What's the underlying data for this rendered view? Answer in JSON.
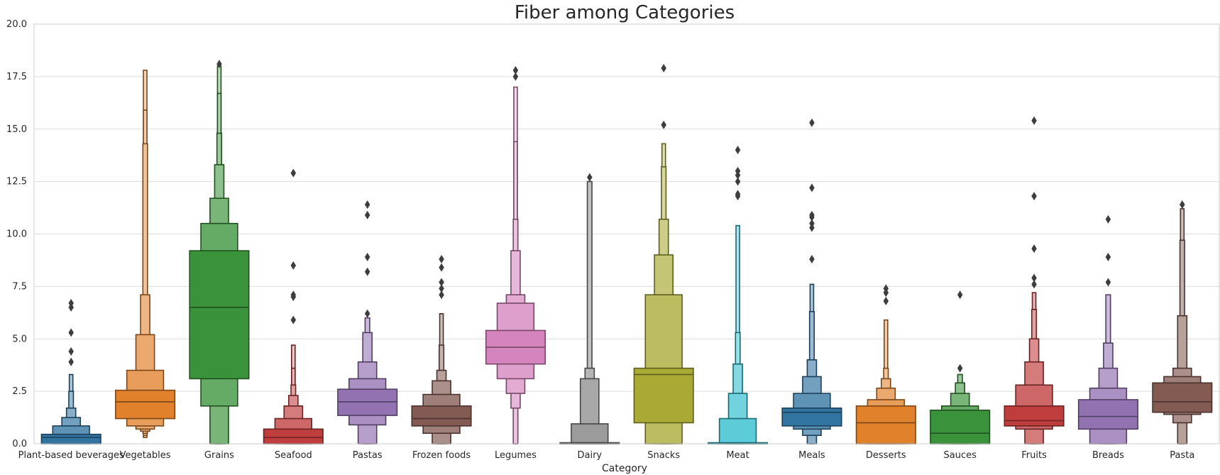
{
  "chart_data": {
    "type": "boxen",
    "title": "Fiber among Categories",
    "xlabel": "Category",
    "ylabel": "",
    "ylim": [
      0,
      20
    ],
    "yticks": [
      "0.0",
      "2.5",
      "5.0",
      "7.5",
      "10.0",
      "12.5",
      "15.0",
      "17.5",
      "20.0"
    ],
    "grid": "horizontal",
    "categories": [
      {
        "name": "Plant-based beverages",
        "color": "#3274a1",
        "median": 0.3,
        "levels": [
          [
            0,
            0.45
          ],
          [
            0,
            0.85
          ],
          [
            0.1,
            1.25
          ],
          [
            0.15,
            1.7
          ],
          [
            0.2,
            2.5
          ],
          [
            0.2,
            3.3
          ]
        ],
        "outliers": [
          3.9,
          4.4,
          5.3,
          6.5,
          6.7
        ]
      },
      {
        "name": "Vegetables",
        "color": "#e1812c",
        "median": 2.0,
        "levels": [
          [
            1.2,
            2.55
          ],
          [
            0.85,
            3.5
          ],
          [
            0.7,
            5.2
          ],
          [
            0.6,
            7.1
          ],
          [
            0.5,
            14.3
          ],
          [
            0.4,
            15.9
          ],
          [
            0.3,
            17.8
          ]
        ],
        "outliers": []
      },
      {
        "name": "Grains",
        "color": "#3a923a",
        "median": 6.5,
        "levels": [
          [
            3.1,
            9.2
          ],
          [
            1.8,
            10.5
          ],
          [
            0,
            11.7
          ],
          [
            0,
            13.3
          ],
          [
            0,
            14.8
          ],
          [
            0,
            16.7
          ],
          [
            0,
            18.0
          ]
        ],
        "outliers": [
          18.1
        ]
      },
      {
        "name": "Seafood",
        "color": "#c03d3e",
        "median": 0.3,
        "levels": [
          [
            0,
            0.7
          ],
          [
            0,
            1.2
          ],
          [
            0,
            1.8
          ],
          [
            0,
            2.3
          ],
          [
            0,
            2.8
          ],
          [
            0,
            3.6
          ],
          [
            0,
            4.7
          ]
        ],
        "outliers": [
          5.9,
          7.0,
          7.1,
          8.5,
          12.9
        ]
      },
      {
        "name": "Pastas",
        "color": "#9372b2",
        "median": 2.0,
        "levels": [
          [
            1.35,
            2.6
          ],
          [
            0.9,
            3.1
          ],
          [
            0,
            3.9
          ],
          [
            0,
            5.3
          ],
          [
            0,
            6.0
          ]
        ],
        "outliers": [
          6.2,
          8.2,
          8.9,
          10.9,
          11.4
        ]
      },
      {
        "name": "Frozen foods",
        "color": "#845b53",
        "median": 1.2,
        "levels": [
          [
            0.85,
            1.8
          ],
          [
            0.5,
            2.35
          ],
          [
            0,
            3.0
          ],
          [
            0,
            3.5
          ],
          [
            0,
            4.7
          ],
          [
            0,
            6.2
          ]
        ],
        "outliers": [
          7.1,
          7.4,
          7.7,
          8.4,
          8.8
        ]
      },
      {
        "name": "Legumes",
        "color": "#d684bd",
        "median": 4.6,
        "levels": [
          [
            3.8,
            5.4
          ],
          [
            3.1,
            6.7
          ],
          [
            2.4,
            7.1
          ],
          [
            1.7,
            9.2
          ],
          [
            0,
            10.7
          ],
          [
            0,
            14.4
          ],
          [
            0,
            17.0
          ]
        ],
        "outliers": [
          17.5,
          17.8
        ]
      },
      {
        "name": "Dairy",
        "color": "#7f7f7f",
        "median": 0.0,
        "levels": [
          [
            0,
            0.05
          ],
          [
            0,
            0.95
          ],
          [
            0,
            3.1
          ],
          [
            0,
            3.6
          ],
          [
            0,
            12.5
          ]
        ],
        "outliers": [
          12.7
        ]
      },
      {
        "name": "Snacks",
        "color": "#a9aa35",
        "median": 3.3,
        "levels": [
          [
            1.0,
            3.6
          ],
          [
            0,
            7.1
          ],
          [
            0,
            9.0
          ],
          [
            0,
            10.7
          ],
          [
            0,
            13.2
          ],
          [
            0,
            14.3
          ]
        ],
        "outliers": [
          15.2,
          17.9
        ]
      },
      {
        "name": "Meat",
        "color": "#2fbdce",
        "median": 0.0,
        "levels": [
          [
            0,
            0.05
          ],
          [
            0,
            1.2
          ],
          [
            0,
            2.4
          ],
          [
            0,
            3.8
          ],
          [
            0,
            5.3
          ],
          [
            0,
            10.4
          ]
        ],
        "outliers": [
          11.8,
          11.9,
          12.5,
          12.8,
          13.0,
          14.0
        ]
      },
      {
        "name": "Meals",
        "color": "#3274a1",
        "median": 1.5,
        "levels": [
          [
            0.85,
            1.7
          ],
          [
            0.7,
            2.4
          ],
          [
            0.4,
            3.2
          ],
          [
            0,
            4.0
          ],
          [
            0,
            6.3
          ],
          [
            0,
            7.6
          ]
        ],
        "outliers": [
          8.8,
          10.3,
          10.5,
          10.8,
          10.9,
          12.2,
          15.3
        ]
      },
      {
        "name": "Desserts",
        "color": "#e1812c",
        "median": 1.0,
        "levels": [
          [
            0,
            1.8
          ],
          [
            0,
            2.1
          ],
          [
            0,
            2.65
          ],
          [
            0,
            3.1
          ],
          [
            0,
            3.6
          ],
          [
            0,
            5.9
          ]
        ],
        "outliers": [
          6.8,
          7.2,
          7.4
        ]
      },
      {
        "name": "Sauces",
        "color": "#3a923a",
        "median": 0.5,
        "levels": [
          [
            0,
            1.6
          ],
          [
            0,
            1.8
          ],
          [
            0,
            2.4
          ],
          [
            0,
            2.9
          ],
          [
            0,
            3.3
          ]
        ],
        "outliers": [
          3.6,
          7.1
        ]
      },
      {
        "name": "Fruits",
        "color": "#c03d3e",
        "median": 1.1,
        "levels": [
          [
            0.85,
            1.8
          ],
          [
            0.7,
            2.8
          ],
          [
            0,
            3.9
          ],
          [
            0,
            5.0
          ],
          [
            0,
            6.4
          ],
          [
            0,
            7.2
          ]
        ],
        "outliers": [
          7.6,
          7.9,
          9.3,
          11.8,
          15.4
        ]
      },
      {
        "name": "Breads",
        "color": "#9372b2",
        "median": 1.3,
        "levels": [
          [
            0.7,
            2.1
          ],
          [
            0,
            2.65
          ],
          [
            0,
            3.6
          ],
          [
            0,
            4.8
          ],
          [
            0,
            7.1
          ]
        ],
        "outliers": [
          7.7,
          8.9,
          10.7
        ]
      },
      {
        "name": "Pasta",
        "color": "#845b53",
        "median": 2.0,
        "levels": [
          [
            1.5,
            2.9
          ],
          [
            1.4,
            3.2
          ],
          [
            1.0,
            3.6
          ],
          [
            0,
            6.1
          ],
          [
            0,
            9.7
          ],
          [
            0,
            11.2
          ]
        ],
        "outliers": [
          11.4
        ]
      }
    ]
  }
}
